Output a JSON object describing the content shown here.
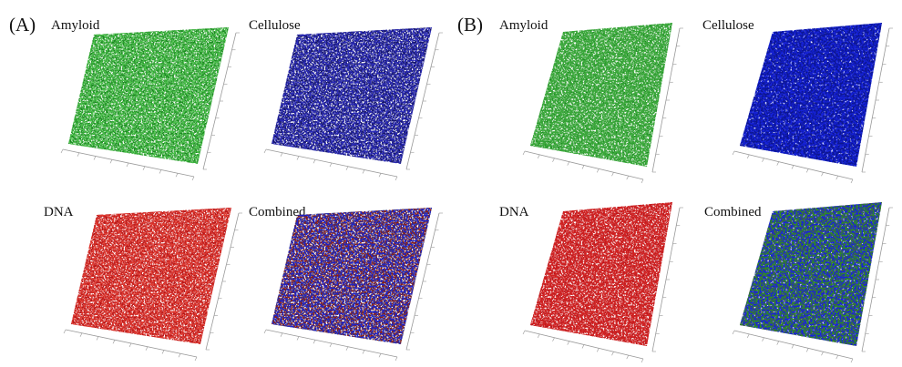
{
  "panels": [
    {
      "label": "(A)",
      "images": [
        {
          "label": "Amyloid"
        },
        {
          "label": "Cellulose"
        },
        {
          "label": "DNA"
        },
        {
          "label": "Combined"
        }
      ]
    },
    {
      "label": "(B)",
      "images": [
        {
          "label": "Amyloid"
        },
        {
          "label": "Cellulose"
        },
        {
          "label": "DNA"
        },
        {
          "label": "Combined"
        }
      ]
    }
  ]
}
